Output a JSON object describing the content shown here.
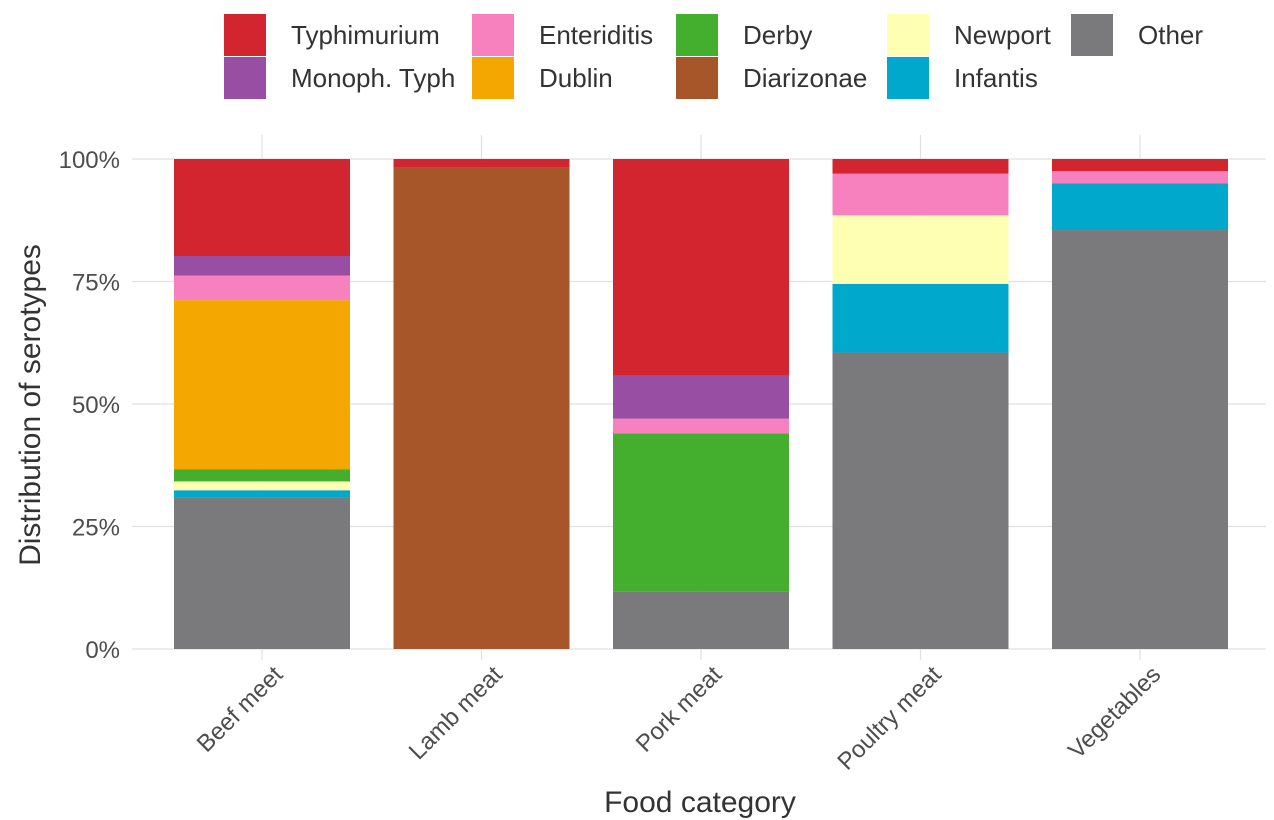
{
  "chart_data": {
    "type": "bar",
    "stacked": true,
    "xlabel": "Food category",
    "ylabel": "Distribution of serotypes",
    "ylim": [
      0,
      1
    ],
    "y_tick_labels": [
      "0%",
      "25%",
      "50%",
      "75%",
      "100%"
    ],
    "y_tick_values": [
      0,
      0.25,
      0.5,
      0.75,
      1.0
    ],
    "categories": [
      "Beef meet",
      "Lamb meat",
      "Pork meat",
      "Poultry meat",
      "Vegetables"
    ],
    "grid": true,
    "legend_position": "top",
    "series": [
      {
        "name": "Typhimurium",
        "color": "#d32530",
        "values": [
          0.198,
          0.018,
          0.442,
          0.03,
          0.025
        ]
      },
      {
        "name": "Monoph. Typh",
        "color": "#984ea3",
        "values": [
          0.04,
          0.0,
          0.088,
          0.0,
          0.0
        ]
      },
      {
        "name": "Enteriditis",
        "color": "#f781bf",
        "values": [
          0.05,
          0.0,
          0.03,
          0.085,
          0.025
        ]
      },
      {
        "name": "Dublin",
        "color": "#f4a700",
        "values": [
          0.345,
          0.0,
          0.0,
          0.0,
          0.0
        ]
      },
      {
        "name": "Derby",
        "color": "#44af2e",
        "values": [
          0.025,
          0.0,
          0.322,
          0.0,
          0.0
        ]
      },
      {
        "name": "Diarizonae",
        "color": "#a65628",
        "values": [
          0.0,
          0.982,
          0.0,
          0.0,
          0.0
        ]
      },
      {
        "name": "Newport",
        "color": "#ffffb3",
        "values": [
          0.018,
          0.0,
          0.0,
          0.14,
          0.0
        ]
      },
      {
        "name": "Infantis",
        "color": "#00a8cc",
        "values": [
          0.014,
          0.0,
          0.0,
          0.14,
          0.095
        ]
      },
      {
        "name": "Other",
        "color": "#7a7a7c",
        "values": [
          0.31,
          0.0,
          0.118,
          0.605,
          0.855
        ]
      }
    ]
  }
}
